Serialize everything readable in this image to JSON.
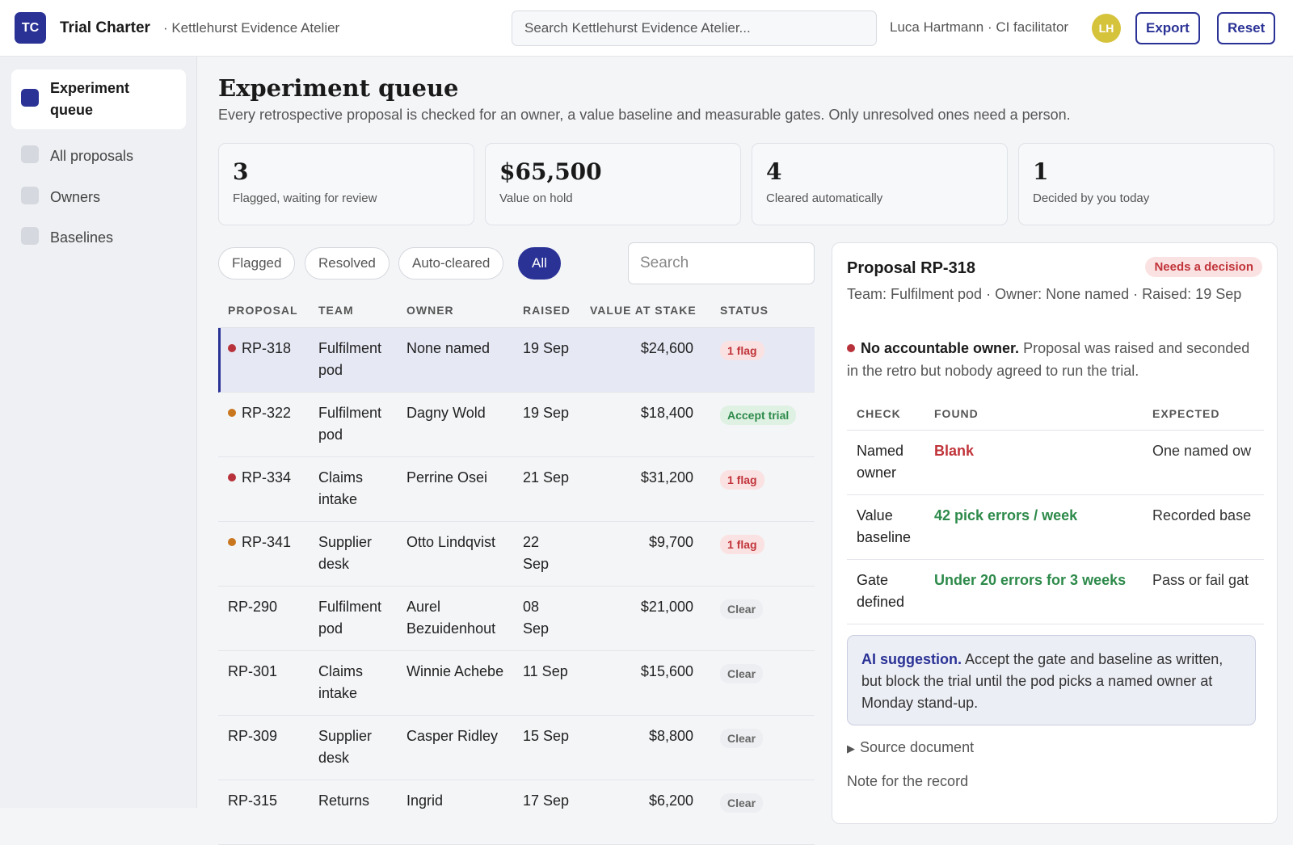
{
  "header": {
    "logo": "TC",
    "app_title": "Trial Charter",
    "workspace": "· Kettlehurst Evidence Atelier",
    "search_placeholder": "Search Kettlehurst Evidence Atelier...",
    "user": "Luca Hartmann · CI facilitator",
    "avatar": "LH",
    "export_label": "Export",
    "reset_label": "Reset"
  },
  "sidebar": {
    "items": [
      {
        "label": "Experiment queue",
        "active": true
      },
      {
        "label": "All proposals"
      },
      {
        "label": "Owners"
      },
      {
        "label": "Baselines"
      }
    ]
  },
  "main": {
    "title": "Experiment queue",
    "subtitle": "Every retrospective proposal is checked for an owner, a value baseline and measurable gates. Only unresolved ones need a person.",
    "stats": [
      {
        "value": "3",
        "label": "Flagged, waiting for review"
      },
      {
        "value": "$65,500",
        "label": "Value on hold"
      },
      {
        "value": "4",
        "label": "Cleared automatically"
      },
      {
        "value": "1",
        "label": "Decided by you today"
      }
    ],
    "filters": [
      "Flagged",
      "Resolved",
      "Auto-cleared",
      "All"
    ],
    "active_filter": "All",
    "search_placeholder": "Search"
  },
  "table": {
    "columns": [
      "PROPOSAL",
      "TEAM",
      "OWNER",
      "RAISED",
      "VALUE AT STAKE",
      "STATUS"
    ],
    "rows": [
      {
        "id": "RP-318",
        "team": "Fulfilment pod",
        "owner": "None named",
        "raised": "19 Sep",
        "value": "$24,600",
        "status": "1 flag",
        "status_kind": "flag",
        "dot": "#b7323a",
        "selected": true
      },
      {
        "id": "RP-322",
        "team": "Fulfilment pod",
        "owner": "Dagny Wold",
        "raised": "19 Sep",
        "value": "$18,400",
        "status": "Accept trial",
        "status_kind": "accept",
        "dot": "#c9771f"
      },
      {
        "id": "RP-334",
        "team": "Claims intake",
        "owner": "Perrine Osei",
        "raised": "21 Sep",
        "value": "$31,200",
        "status": "1 flag",
        "status_kind": "flag",
        "dot": "#b7323a"
      },
      {
        "id": "RP-341",
        "team": "Supplier desk",
        "owner": "Otto Lindqvist",
        "raised": "22 Sep",
        "value": "$9,700",
        "status": "1 flag",
        "status_kind": "flag",
        "dot": "#c9771f"
      },
      {
        "id": "RP-290",
        "team": "Fulfilment pod",
        "owner": "Aurel Bezuidenhout",
        "raised": "08 Sep",
        "value": "$21,000",
        "status": "Clear",
        "status_kind": "clear"
      },
      {
        "id": "RP-301",
        "team": "Claims intake",
        "owner": "Winnie Achebe",
        "raised": "11 Sep",
        "value": "$15,600",
        "status": "Clear",
        "status_kind": "clear"
      },
      {
        "id": "RP-309",
        "team": "Supplier desk",
        "owner": "Casper Ridley",
        "raised": "15 Sep",
        "value": "$8,800",
        "status": "Clear",
        "status_kind": "clear"
      },
      {
        "id": "RP-315",
        "team": "Returns",
        "owner": "Ingrid",
        "raised": "17 Sep",
        "value": "$6,200",
        "status": "Clear",
        "status_kind": "clear"
      }
    ]
  },
  "detail": {
    "title": "Proposal RP-318",
    "badge": "Needs a decision",
    "meta": "Team: Fulfilment pod · Owner: None named · Raised: 19 Sep",
    "issue_title": "No accountable owner.",
    "issue_text": "Proposal was raised and seconded in the retro but nobody agreed to run the trial.",
    "check_columns": [
      "CHECK",
      "FOUND",
      "EXPECTED"
    ],
    "checks": [
      {
        "check": "Named owner",
        "found": "Blank",
        "found_ok": false,
        "expected": "One named ow"
      },
      {
        "check": "Value baseline",
        "found": "42 pick errors / week",
        "found_ok": true,
        "expected": "Recorded base"
      },
      {
        "check": "Gate defined",
        "found": "Under 20 errors for 3 weeks",
        "found_ok": true,
        "expected": "Pass or fail gat"
      }
    ],
    "ai_label": "AI suggestion.",
    "ai_text": "Accept the gate and baseline as written, but block the trial until the pod picks a named owner at Monday stand-up.",
    "source_label": "Source document",
    "note_label": "Note for the record"
  },
  "colors": {
    "accent": "#2a3296",
    "danger": "#c0343a",
    "success": "#2d8a4a",
    "warning": "#c9771f"
  }
}
